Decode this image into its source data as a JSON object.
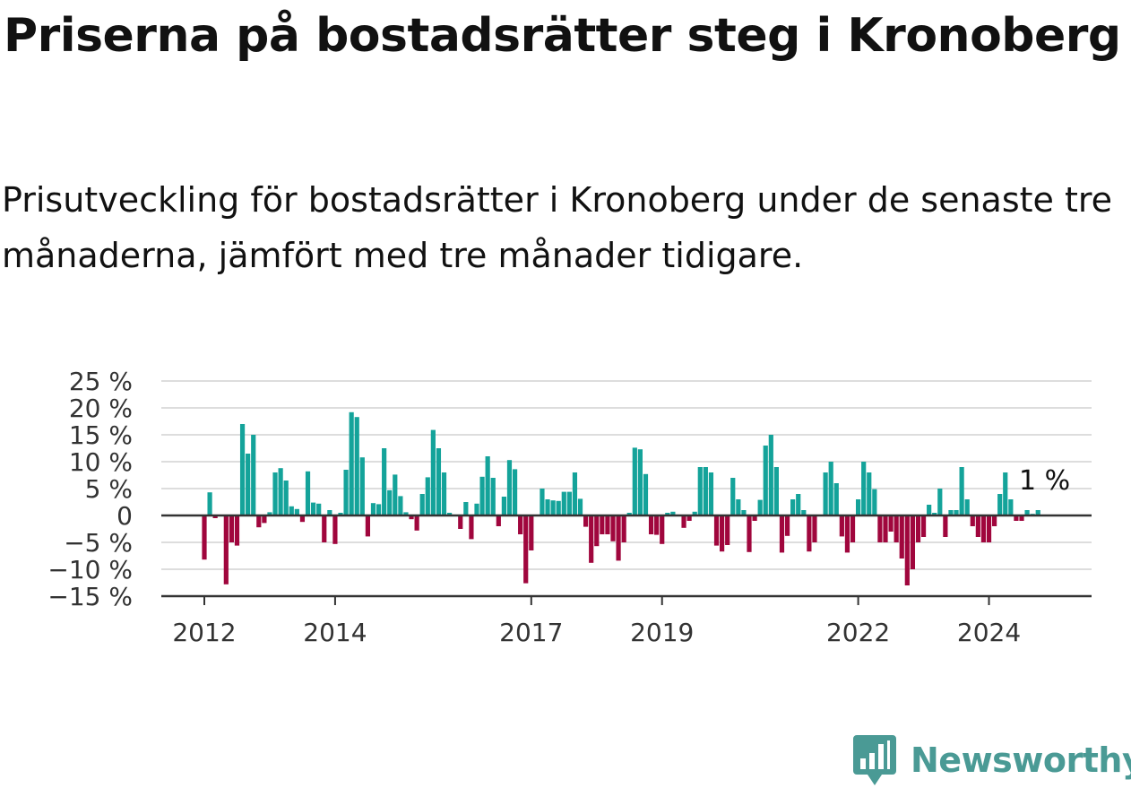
{
  "title": "Priserna på bostadsrätter steg i Kronoberg",
  "subtitle": "Prisutveckling för bostadsrätter i Kronoberg under de senaste tre månaderna, jämfört med tre månader tidigare.",
  "brand": "Newsworthy",
  "colors": {
    "positive": "#14a39a",
    "negative": "#a0063d",
    "grid": "#dddddd",
    "axis": "#333333",
    "brand": "#4a9a95"
  },
  "chart_data": {
    "type": "bar",
    "ylim": [
      -15,
      25
    ],
    "y_ticks": [
      25,
      20,
      15,
      10,
      5,
      0,
      -5,
      -10,
      -15
    ],
    "y_tick_labels": [
      "25 %",
      "20 %",
      "15 %",
      "10 %",
      "5 %",
      "0",
      "−5 %",
      "−10 %",
      "−15 %"
    ],
    "x_ticks": [
      {
        "label": "2012",
        "index": 0
      },
      {
        "label": "2014",
        "index": 24
      },
      {
        "label": "2017",
        "index": 60
      },
      {
        "label": "2019",
        "index": 84
      },
      {
        "label": "2022",
        "index": 120
      },
      {
        "label": "2024",
        "index": 144
      }
    ],
    "start": "2012-01",
    "grid": true,
    "annotation": "1 %",
    "values": [
      -8.2,
      4.3,
      -0.5,
      0,
      -12.8,
      -5,
      -5.6,
      17,
      11.5,
      15,
      -2.2,
      -1.4,
      0.6,
      8,
      8.8,
      6.5,
      1.7,
      1.2,
      -1.2,
      8.2,
      2.4,
      2.2,
      -5,
      1,
      -5.3,
      0.5,
      8.5,
      19.2,
      18.3,
      10.8,
      -3.9,
      2.3,
      2.1,
      12.5,
      4.7,
      7.6,
      3.6,
      0.6,
      -0.7,
      -2.8,
      4,
      7.1,
      15.9,
      12.5,
      8,
      0.5,
      0,
      -2.5,
      2.5,
      -4.4,
      2.2,
      7.2,
      11,
      7,
      -2,
      3.5,
      10.3,
      8.6,
      -3.5,
      -12.6,
      -6.5,
      0,
      5,
      3,
      2.8,
      2.7,
      4.4,
      4.4,
      8,
      3.1,
      -2.1,
      -8.8,
      -5.7,
      -3.5,
      -3.5,
      -4.8,
      -8.4,
      -5,
      0.5,
      12.6,
      12.3,
      7.7,
      -3.5,
      -3.6,
      -5.3,
      0.5,
      0.7,
      0,
      -2.3,
      -1,
      0.7,
      9,
      9,
      8,
      -5.6,
      -6.7,
      -5.5,
      7,
      3,
      1,
      -6.8,
      -1,
      2.9,
      13,
      15,
      9,
      -6.9,
      -3.8,
      3,
      4,
      1,
      -6.7,
      -5,
      0,
      8,
      10,
      6,
      -3.9,
      -6.9,
      -5,
      3,
      10,
      8,
      4.9,
      -5,
      -5,
      -3,
      -5,
      -8,
      -13,
      -10,
      -5,
      -4,
      2,
      0.5,
      5,
      -4,
      1,
      1,
      9,
      3,
      -2,
      -4,
      -5,
      -5,
      -2,
      4,
      8,
      3,
      -1,
      -1,
      1,
      0.3,
      1
    ]
  }
}
